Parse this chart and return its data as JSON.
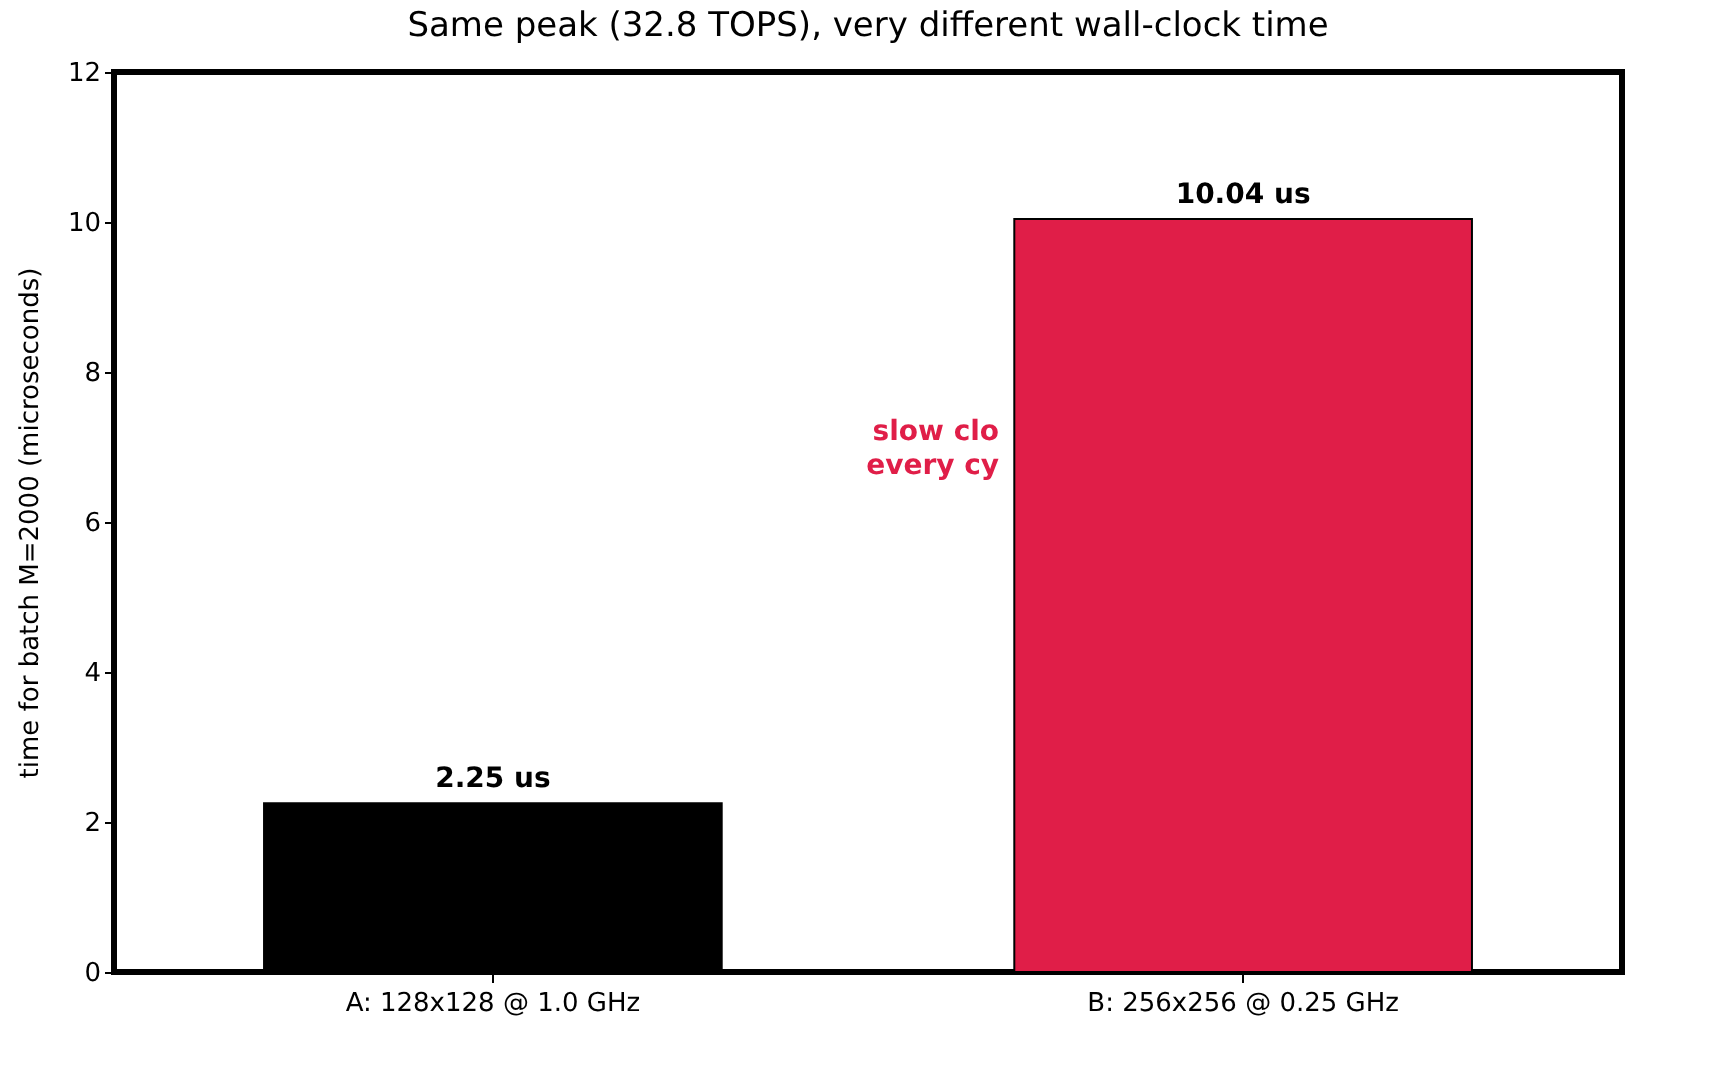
{
  "chart_data": {
    "type": "bar",
    "title": "Same peak (32.8 TOPS), very different wall-clock time",
    "ylabel": "time for batch M=2000 (microseconds)",
    "categories": [
      "A: 128x128 @ 1.0 GHz",
      "B: 256x256 @ 0.25 GHz"
    ],
    "values": [
      2.25,
      10.04
    ],
    "colors": [
      "#000000",
      "#e01e48"
    ],
    "value_labels": [
      "2.25 us",
      "10.04 us"
    ],
    "annotations": [
      "slow clo\nevery cy"
    ],
    "ylim": [
      0,
      12
    ],
    "yticks": [
      0,
      2,
      4,
      6,
      8,
      10,
      12
    ]
  }
}
